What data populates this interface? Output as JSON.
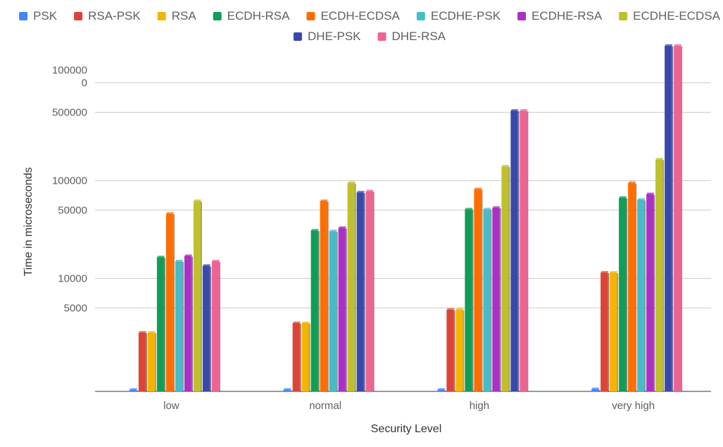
{
  "chart_data": {
    "type": "bar",
    "categories": [
      "low",
      "normal",
      "high",
      "very high"
    ],
    "xlabel": "Security Level",
    "ylabel": "Time in microseconds",
    "y_scale": "log",
    "ylim": [
      700,
      2600000
    ],
    "y_ticks": [
      {
        "value": 5000,
        "label": "5000"
      },
      {
        "value": 10000,
        "label": "10000"
      },
      {
        "value": 50000,
        "label": "50000"
      },
      {
        "value": 100000,
        "label": "100000"
      },
      {
        "value": 500000,
        "label": "500000"
      },
      {
        "value": 1000000,
        "label": [
          "100000",
          "0"
        ]
      }
    ],
    "grid": true,
    "legend_position": "top",
    "series": [
      {
        "name": "PSK",
        "color": "#4285f4",
        "values": [
          730,
          730,
          730,
          740
        ]
      },
      {
        "name": "RSA-PSK",
        "color": "#db4437",
        "values": [
          2800,
          3500,
          4800,
          11500
        ]
      },
      {
        "name": "RSA",
        "color": "#f4b400",
        "values": [
          2800,
          3500,
          4800,
          11500
        ]
      },
      {
        "name": "ECDH-RSA",
        "color": "#0f9d58",
        "values": [
          16500,
          31000,
          51000,
          67000
        ]
      },
      {
        "name": "ECDH-ECDSA",
        "color": "#ff6d00",
        "values": [
          46000,
          62000,
          82000,
          95000
        ]
      },
      {
        "name": "ECDHE-PSK",
        "color": "#46bdc6",
        "values": [
          15000,
          30500,
          51000,
          64000
        ]
      },
      {
        "name": "ECDHE-RSA",
        "color": "#ab30c4",
        "values": [
          17000,
          33000,
          53000,
          73000
        ]
      },
      {
        "name": "ECDHE-ECDSA",
        "color": "#c0c02a",
        "values": [
          62000,
          95000,
          140000,
          165000
        ]
      },
      {
        "name": "DHE-PSK",
        "color": "#3949ab",
        "values": [
          13500,
          76000,
          520000,
          2400000
        ]
      },
      {
        "name": "DHE-RSA",
        "color": "#f06292",
        "values": [
          15000,
          78000,
          520000,
          2400000
        ]
      }
    ]
  }
}
